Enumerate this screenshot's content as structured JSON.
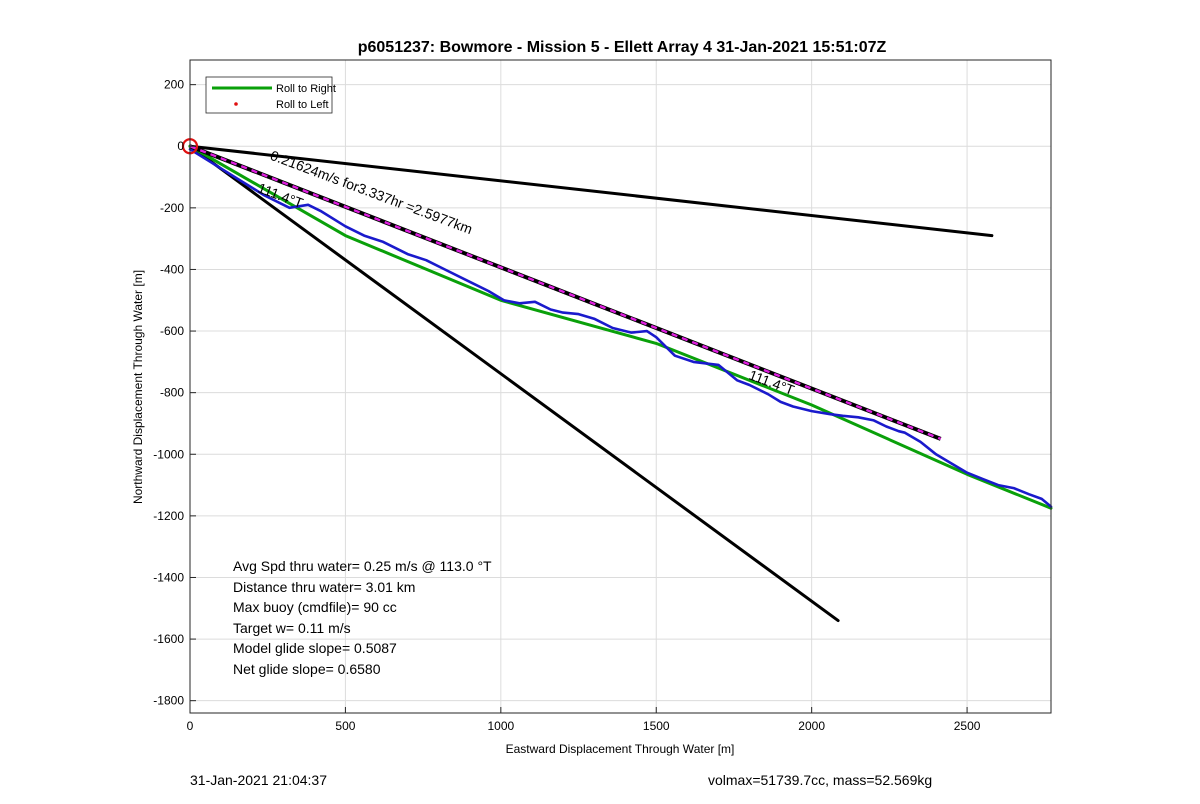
{
  "chart_data": {
    "type": "line",
    "title": "p6051237: Bowmore - Mission 5 - Ellett Array 4 31-Jan-2021 15:51:07Z",
    "xlabel": "Eastward Displacement Through Water [m]",
    "ylabel": "Northward Displacement Through Water [m]",
    "xlim": [
      0,
      2770
    ],
    "ylim": [
      -1840,
      280
    ],
    "xticks": [
      0,
      500,
      1000,
      1500,
      2000,
      2500
    ],
    "yticks": [
      200,
      0,
      -200,
      -400,
      -600,
      -800,
      -1000,
      -1200,
      -1400,
      -1600,
      -1800
    ],
    "grid": true,
    "legend_placement": "top-left",
    "series": [
      {
        "name": "Roll to Right",
        "color": "#0aa00a",
        "x": [
          0,
          500,
          1000,
          1500,
          2000,
          2500,
          2770
        ],
        "y": [
          0,
          -290,
          -500,
          -640,
          -840,
          -1065,
          -1175
        ]
      },
      {
        "name": "Roll to Left",
        "color": "#e01010",
        "x": [],
        "y": []
      },
      {
        "color": "#1a1acc",
        "x": [
          0,
          80,
          160,
          240,
          320,
          380,
          420,
          500,
          560,
          620,
          700,
          760,
          820,
          900,
          960,
          1010,
          1060,
          1110,
          1160,
          1200,
          1250,
          1300,
          1360,
          1420,
          1470,
          1500,
          1560,
          1620,
          1700,
          1760,
          1800,
          1860,
          1900,
          1940,
          2000,
          2060,
          2100,
          2150,
          2200,
          2240,
          2280,
          2300,
          2350,
          2400,
          2450,
          2500,
          2550,
          2600,
          2650,
          2700,
          2740,
          2770
        ],
        "y": [
          -10,
          -60,
          -110,
          -160,
          -200,
          -190,
          -210,
          -260,
          -290,
          -310,
          -350,
          -370,
          -400,
          -440,
          -470,
          -500,
          -510,
          -505,
          -530,
          -540,
          -545,
          -560,
          -590,
          -605,
          -600,
          -620,
          -680,
          -700,
          -710,
          -760,
          -775,
          -805,
          -830,
          -845,
          -860,
          -870,
          -875,
          -880,
          -890,
          -910,
          -925,
          -930,
          -960,
          -1000,
          -1030,
          -1060,
          -1080,
          -1100,
          -1110,
          -1130,
          -1145,
          -1170
        ]
      },
      {
        "color": "#000000",
        "x": [
          0,
          2580
        ],
        "y": [
          0,
          -290
        ]
      },
      {
        "color": "#000000",
        "x": [
          0,
          2085
        ],
        "y": [
          0,
          -1540
        ]
      },
      {
        "color": "#e020e0",
        "dashed": true,
        "x": [
          0,
          2415
        ],
        "y": [
          0,
          -950
        ]
      }
    ],
    "marker": {
      "x": 0,
      "y": 0,
      "color": "#e01010"
    },
    "annotations": [
      {
        "text": "0.21624m/s for3.337hr =2.5977km",
        "x": 255,
        "y": -42,
        "angle_deg": 20.5
      },
      {
        "text": "111.4°T",
        "x": 215,
        "y": -148,
        "angle_deg": 20.5
      },
      {
        "text": "111.4°T",
        "x": 1795,
        "y": -755,
        "angle_deg": 20.5
      }
    ],
    "stats": [
      "Avg Spd thru water=  0.25 m/s @ 113.0 °T",
      "Distance thru water=  3.01 km",
      "Max buoy (cmdfile)= 90 cc",
      "Target w= 0.11 m/s",
      "Model glide slope= 0.5087",
      "Net glide slope= 0.6580"
    ]
  },
  "footer": {
    "timestamp": "31-Jan-2021 21:04:37",
    "volmax_mass": "volmax=51739.7cc, mass=52.569kg"
  }
}
